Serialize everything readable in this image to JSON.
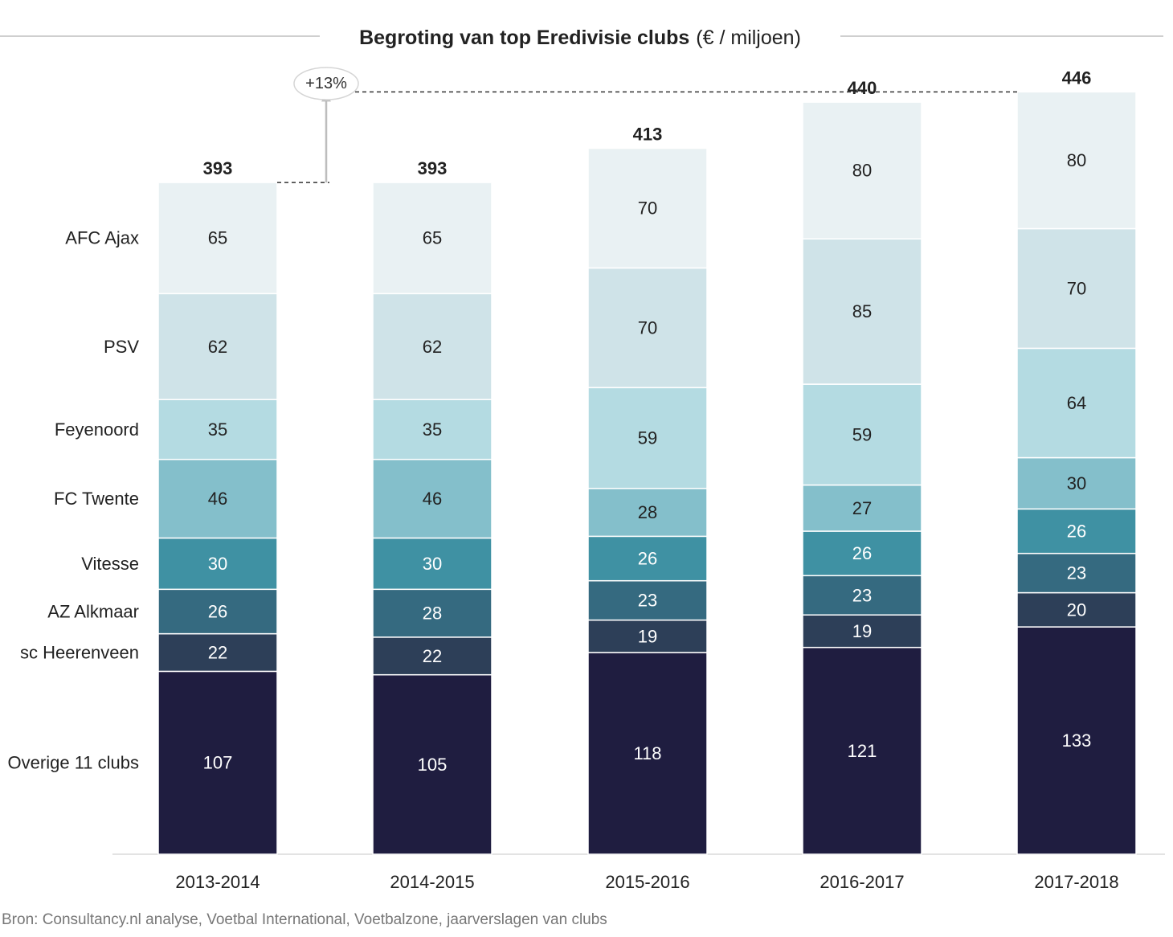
{
  "chart_data": {
    "type": "bar",
    "stacked": true,
    "title": "Begroting van top Eredivisie clubs",
    "title_unit": "(€ / miljoen)",
    "categories": [
      "2013-2014",
      "2014-2015",
      "2015-2016",
      "2016-2017",
      "2017-2018"
    ],
    "totals": [
      393,
      393,
      413,
      440,
      446
    ],
    "series": [
      {
        "name": "Overige 11 clubs",
        "values": [
          107,
          105,
          118,
          121,
          133
        ],
        "color": "#1f1d40",
        "label_color": "#ffffff"
      },
      {
        "name": "sc Heerenveen",
        "values": [
          22,
          22,
          19,
          19,
          20
        ],
        "color": "#2d3f58",
        "label_color": "#ffffff"
      },
      {
        "name": "AZ Alkmaar",
        "values": [
          26,
          28,
          23,
          23,
          23
        ],
        "color": "#356a80",
        "label_color": "#ffffff"
      },
      {
        "name": "Vitesse",
        "values": [
          30,
          30,
          26,
          26,
          26
        ],
        "color": "#3f91a3",
        "label_color": "#ffffff"
      },
      {
        "name": "FC Twente",
        "values": [
          46,
          46,
          28,
          27,
          30
        ],
        "color": "#84bfcb",
        "label_color": "#222222"
      },
      {
        "name": "Feyenoord",
        "values": [
          35,
          35,
          59,
          59,
          64
        ],
        "color": "#b4dbe2",
        "label_color": "#222222"
      },
      {
        "name": "PSV",
        "values": [
          62,
          62,
          70,
          85,
          70
        ],
        "color": "#cfe3e8",
        "label_color": "#222222"
      },
      {
        "name": "AFC Ajax",
        "values": [
          65,
          65,
          70,
          80,
          80
        ],
        "color": "#e9f1f3",
        "label_color": "#222222"
      }
    ],
    "growth_annotation": "+13%",
    "ylim": [
      0,
      460
    ],
    "grid": false,
    "legend": "left-row-labels"
  },
  "source_text": "Bron: Consultancy.nl analyse, Voetbal International, Voetbalzone, jaarverslagen van clubs"
}
